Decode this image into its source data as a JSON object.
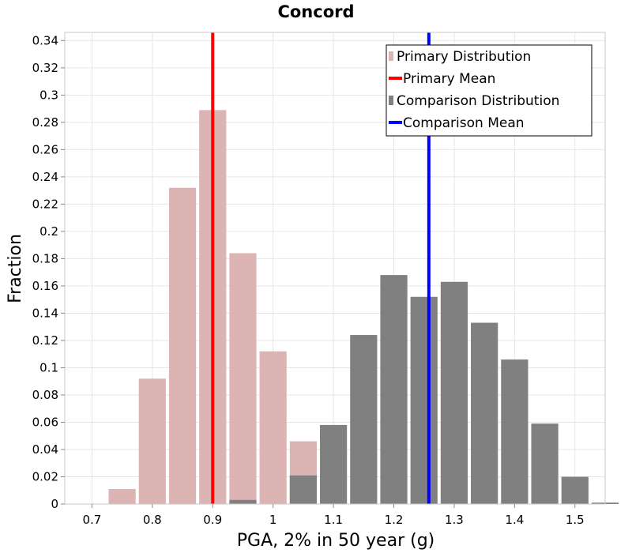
{
  "chart_data": {
    "type": "bar",
    "title": "Concord",
    "xlabel": "PGA, 2% in 50 year (g)",
    "ylabel": "Fraction",
    "xlim": [
      0.655,
      1.55
    ],
    "ylim": [
      0,
      0.346
    ],
    "xticks": [
      "0.7",
      "0.8",
      "0.9",
      "1",
      "1.1",
      "1.2",
      "1.3",
      "1.4",
      "1.5"
    ],
    "xtick_values": [
      0.7,
      0.8,
      0.9,
      1.0,
      1.1,
      1.2,
      1.3,
      1.4,
      1.5
    ],
    "yticks": [
      "0",
      "0.02",
      "0.04",
      "0.06",
      "0.08",
      "0.1",
      "0.12",
      "0.14",
      "0.16",
      "0.18",
      "0.2",
      "0.22",
      "0.24",
      "0.26",
      "0.28",
      "0.3",
      "0.32",
      "0.34"
    ],
    "ytick_values": [
      0,
      0.02,
      0.04,
      0.06,
      0.08,
      0.1,
      0.12,
      0.14,
      0.16,
      0.18,
      0.2,
      0.22,
      0.24,
      0.26,
      0.28,
      0.3,
      0.32,
      0.34
    ],
    "grid": true,
    "bin_width": 0.05,
    "series": [
      {
        "name": "Primary Distribution",
        "color": "#dcb4b4",
        "x": [
          0.75,
          0.8,
          0.85,
          0.9,
          0.95,
          1.0,
          1.05
        ],
        "values": [
          0.011,
          0.092,
          0.232,
          0.289,
          0.184,
          0.112,
          0.046
        ]
      },
      {
        "name": "Comparison Distribution",
        "color": "#808080",
        "x": [
          0.95,
          1.05,
          1.1,
          1.15,
          1.2,
          1.25,
          1.3,
          1.35,
          1.4,
          1.45,
          1.5,
          1.55
        ],
        "values": [
          0.003,
          0.021,
          0.058,
          0.124,
          0.168,
          0.152,
          0.163,
          0.133,
          0.106,
          0.059,
          0.02,
          0.001
        ]
      }
    ],
    "mean_lines": [
      {
        "name": "Primary Mean",
        "color": "#ff0000",
        "x": 0.9
      },
      {
        "name": "Comparison Mean",
        "color": "#0000ff",
        "x": 1.258
      }
    ],
    "legend": {
      "position": "top-right",
      "entries": [
        {
          "label": "Primary Distribution",
          "type": "bar",
          "color": "#dcb4b4"
        },
        {
          "label": "Primary Mean",
          "type": "line",
          "color": "#ff0000"
        },
        {
          "label": "Comparison Distribution",
          "type": "bar",
          "color": "#808080"
        },
        {
          "label": "Comparison Mean",
          "type": "line",
          "color": "#0000ff"
        }
      ]
    }
  }
}
